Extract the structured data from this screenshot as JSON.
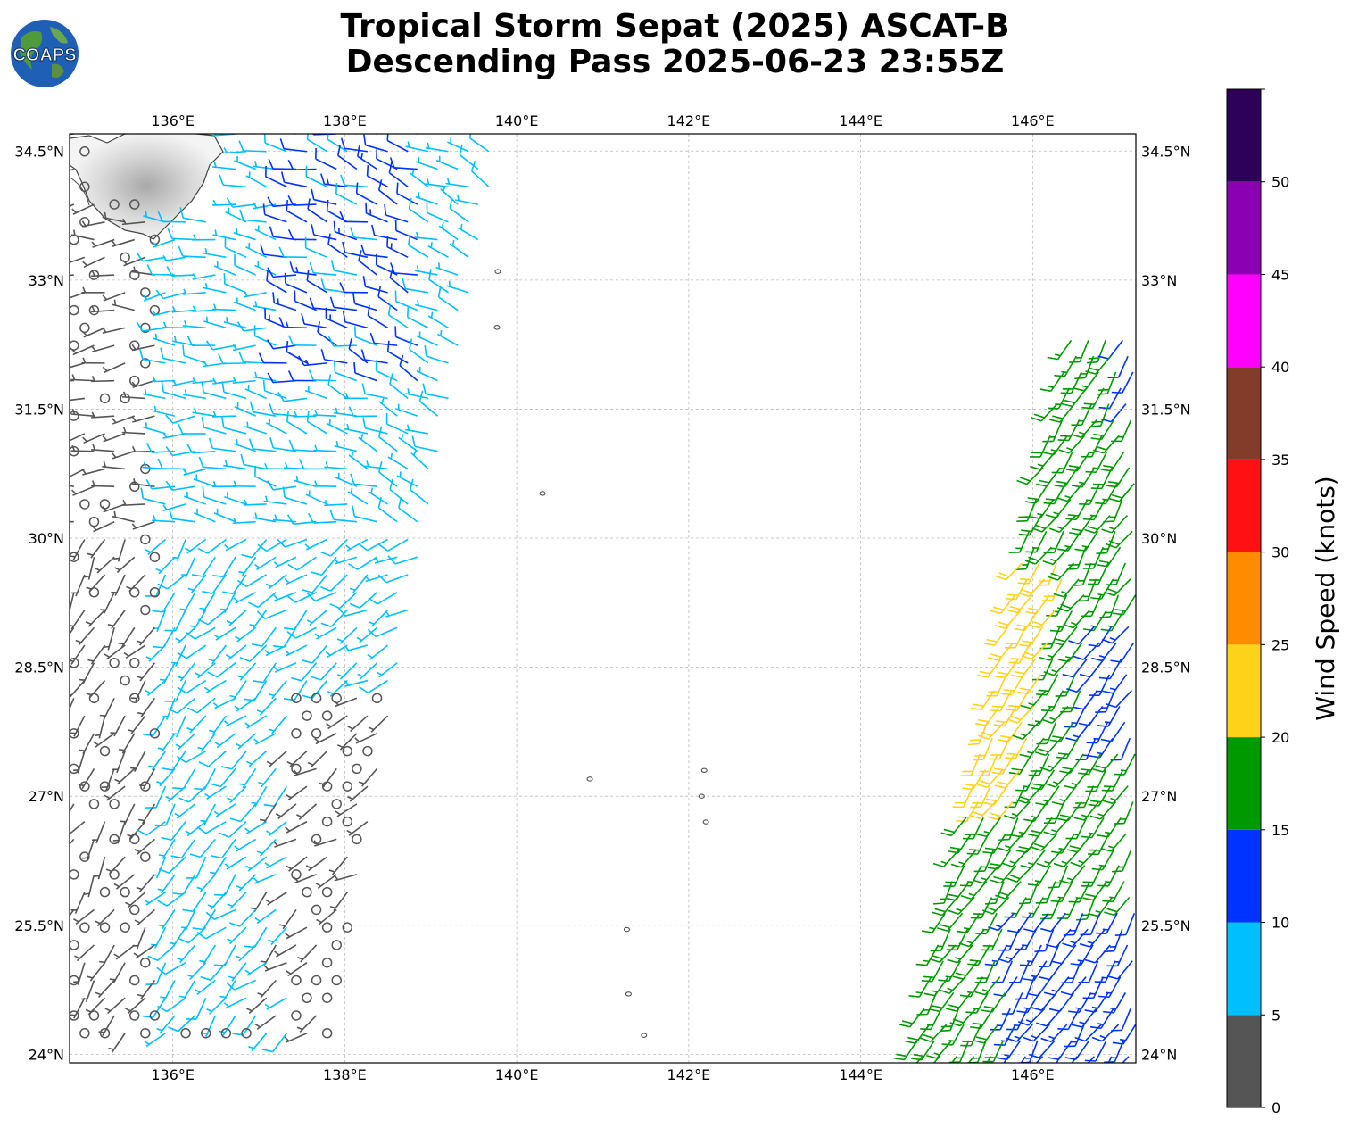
{
  "header": {
    "title_line1": "Tropical Storm Sepat (2025) ASCAT-B",
    "title_line2": "Descending Pass 2025-06-23 23:55Z",
    "logo_text": "COAPS"
  },
  "map": {
    "lon_ticks": [
      "136°E",
      "138°E",
      "140°E",
      "142°E",
      "144°E",
      "146°E"
    ],
    "lat_ticks": [
      "34.5°N",
      "33°N",
      "31.5°N",
      "30°N",
      "28.5°N",
      "27°N",
      "25.5°N",
      "24°N"
    ],
    "extent": {
      "lon_min": 134.8,
      "lon_max": 147.2,
      "lat_min": 23.9,
      "lat_max": 34.7
    },
    "gridlines": true
  },
  "colorbar": {
    "label": "Wind Speed (knots)",
    "tick_labels": [
      "0",
      "5",
      "10",
      "15",
      "20",
      "25",
      "30",
      "35",
      "40",
      "45",
      "50"
    ],
    "bins": [
      {
        "min": 0,
        "max": 5,
        "color": "#555555"
      },
      {
        "min": 5,
        "max": 10,
        "color": "#00bfff"
      },
      {
        "min": 10,
        "max": 15,
        "color": "#0033ff"
      },
      {
        "min": 15,
        "max": 20,
        "color": "#009900"
      },
      {
        "min": 20,
        "max": 25,
        "color": "#ffd21a"
      },
      {
        "min": 25,
        "max": 30,
        "color": "#ff8c00"
      },
      {
        "min": 30,
        "max": 35,
        "color": "#ff1111"
      },
      {
        "min": 35,
        "max": 40,
        "color": "#833c2a"
      },
      {
        "min": 40,
        "max": 45,
        "color": "#ff00ff"
      },
      {
        "min": 45,
        "max": 50,
        "color": "#8b00b3"
      },
      {
        "min": 50,
        "max": 55,
        "color": "#2d0059"
      }
    ]
  },
  "chart_data": {
    "type": "scatter",
    "description_units": "wind barbs, speed in knots",
    "swaths": [
      {
        "lon_range": [
          134.8,
          139.8
        ],
        "lat_range": [
          23.9,
          34.7
        ],
        "speed_knots_range": [
          0,
          15
        ]
      },
      {
        "lon_range": [
          144.6,
          147.2
        ],
        "lat_range": [
          23.9,
          32.3
        ],
        "speed_knots_range": [
          10,
          25
        ]
      }
    ]
  }
}
